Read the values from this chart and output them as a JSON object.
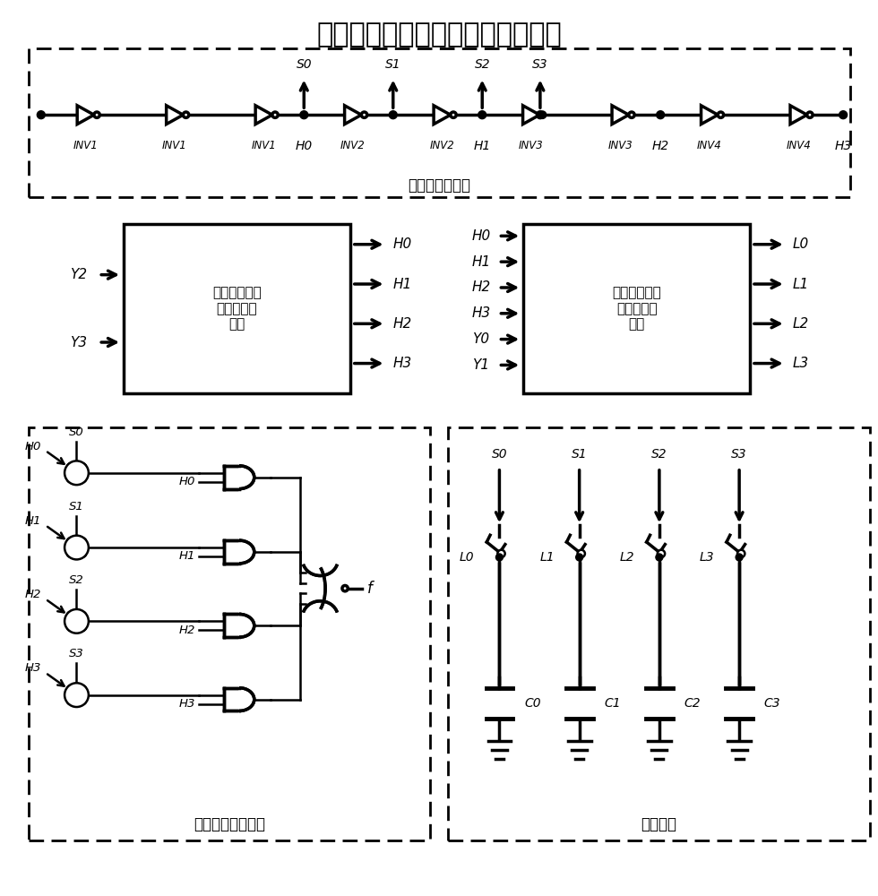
{
  "title": "环形振荡器频率调制模块整体架构",
  "title_fontsize": 20,
  "background_color": "#ffffff",
  "ring_osc_label": "环形振荡器单元",
  "coarse_block_label": "高两位控制信\n号粗调频率\n模块",
  "fine_block_label": "低两位控制信\n号细调频率\n模块",
  "ctrl_out_label": "控制输出频率模块",
  "cap_unit_label": "电容单元",
  "inv_labels": [
    "INV1",
    "INV1",
    "INV1",
    "INV2",
    "INV2",
    "INV3",
    "INV3",
    "INV4",
    "INV4"
  ],
  "h_labels": [
    "H0",
    "H1",
    "H2",
    "H3"
  ],
  "s_labels": [
    "S0",
    "S1",
    "S2",
    "S3"
  ],
  "coarse_inputs": [
    "Y2",
    "Y3"
  ],
  "coarse_outputs": [
    "H0",
    "H1",
    "H2",
    "H3"
  ],
  "fine_inputs": [
    "H0",
    "H1",
    "H2",
    "H3",
    "Y0",
    "Y1"
  ],
  "fine_outputs": [
    "L0",
    "L1",
    "L2",
    "L3"
  ],
  "cap_labels": [
    "C0",
    "C1",
    "C2",
    "C3"
  ],
  "lx_labels": [
    "L0",
    "L1",
    "L2",
    "L3"
  ]
}
